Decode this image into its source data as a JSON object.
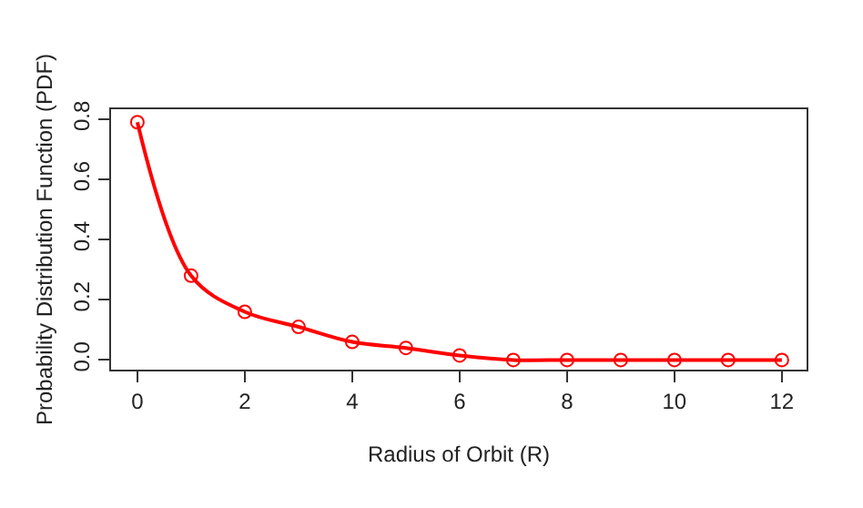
{
  "chart_data": {
    "type": "line",
    "xlabel": "Radius of Orbit (R)",
    "ylabel": "Probability Distribution Function (PDF)",
    "x": [
      0,
      1,
      2,
      3,
      4,
      5,
      6,
      7,
      8,
      9,
      10,
      11,
      12
    ],
    "series": [
      {
        "color": "#ff0000",
        "values": [
          0.79,
          0.28,
          0.16,
          0.11,
          0.06,
          0.04,
          0.015,
          0,
          0,
          0,
          0,
          0,
          0
        ]
      }
    ],
    "xlim": [
      -0.49,
      12.46
    ],
    "xticks": [
      0,
      2,
      4,
      6,
      8,
      10,
      12
    ],
    "ylim": [
      -0.032,
      0.833
    ],
    "yticks": [
      {
        "value": 0,
        "label": "0.0"
      },
      {
        "value": 0.2,
        "label": "0.2"
      },
      {
        "value": 0.4,
        "label": "0.4"
      },
      {
        "value": 0.6,
        "label": "0.6"
      },
      {
        "value": 0.8,
        "label": "0.8"
      }
    ],
    "marker": "circle",
    "line_style": "solid"
  }
}
